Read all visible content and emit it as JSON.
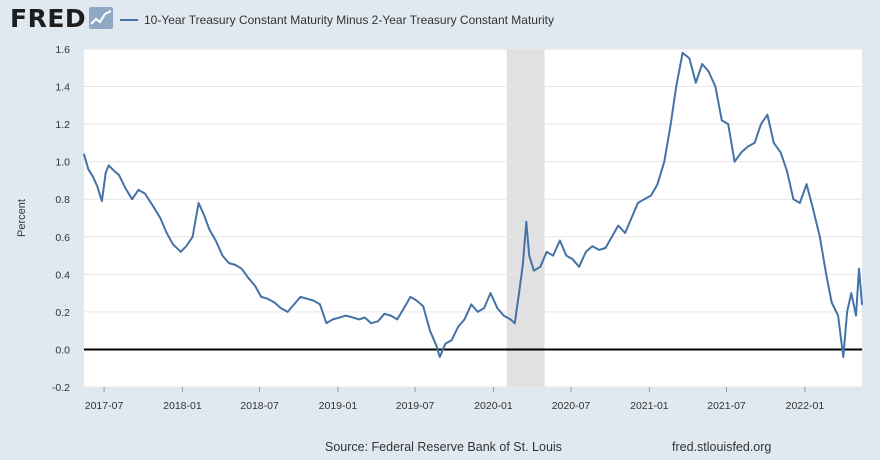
{
  "branding": {
    "logo_text": "FRED",
    "logo_icon": "fred-trend-line-icon"
  },
  "footer": {
    "source": "Source: Federal Reserve Bank of St. Louis",
    "url": "fred.stlouisfed.org"
  },
  "colors": {
    "background": "#e1e9f0",
    "plot_background": "#ffffff",
    "series": "#4572a7",
    "recession": "#e1e1e1",
    "zero_line": "#000000",
    "grid": "#e6e6e6"
  },
  "chart_data": {
    "type": "line",
    "title": "",
    "xlabel": "",
    "ylabel": "Percent",
    "ylim": [
      -0.2,
      1.6
    ],
    "xlim": [
      "2017-05-15",
      "2022-05-15"
    ],
    "grid": "horizontal",
    "legend_position": "top",
    "y_ticks": [
      "1.6",
      "1.4",
      "1.2",
      "1.0",
      "0.8",
      "0.6",
      "0.4",
      "0.2",
      "0.0",
      "-0.2"
    ],
    "x_ticks": [
      "2017-07",
      "2018-01",
      "2018-07",
      "2019-01",
      "2019-07",
      "2020-01",
      "2020-07",
      "2021-01",
      "2021-07",
      "2022-01"
    ],
    "recession_shading": [
      {
        "start": "2020-02-01",
        "end": "2020-04-30"
      }
    ],
    "reference_line": {
      "y": 0.0
    },
    "series": [
      {
        "name": "10-Year Treasury Constant Maturity Minus 2-Year Treasury Constant Maturity",
        "points": [
          [
            "2017-05-15",
            1.04
          ],
          [
            "2017-05-25",
            0.96
          ],
          [
            "2017-06-05",
            0.92
          ],
          [
            "2017-06-15",
            0.87
          ],
          [
            "2017-06-26",
            0.79
          ],
          [
            "2017-07-05",
            0.94
          ],
          [
            "2017-07-12",
            0.98
          ],
          [
            "2017-07-25",
            0.95
          ],
          [
            "2017-08-05",
            0.93
          ],
          [
            "2017-08-20",
            0.86
          ],
          [
            "2017-09-05",
            0.8
          ],
          [
            "2017-09-20",
            0.85
          ],
          [
            "2017-10-05",
            0.83
          ],
          [
            "2017-10-25",
            0.76
          ],
          [
            "2017-11-10",
            0.7
          ],
          [
            "2017-11-25",
            0.62
          ],
          [
            "2017-12-10",
            0.56
          ],
          [
            "2017-12-28",
            0.52
          ],
          [
            "2018-01-10",
            0.55
          ],
          [
            "2018-01-25",
            0.6
          ],
          [
            "2018-02-08",
            0.78
          ],
          [
            "2018-02-20",
            0.72
          ],
          [
            "2018-03-05",
            0.64
          ],
          [
            "2018-03-20",
            0.58
          ],
          [
            "2018-04-05",
            0.5
          ],
          [
            "2018-04-20",
            0.46
          ],
          [
            "2018-05-05",
            0.45
          ],
          [
            "2018-05-20",
            0.43
          ],
          [
            "2018-06-05",
            0.38
          ],
          [
            "2018-06-20",
            0.34
          ],
          [
            "2018-07-05",
            0.28
          ],
          [
            "2018-07-20",
            0.27
          ],
          [
            "2018-08-05",
            0.25
          ],
          [
            "2018-08-20",
            0.22
          ],
          [
            "2018-09-05",
            0.2
          ],
          [
            "2018-09-20",
            0.24
          ],
          [
            "2018-10-05",
            0.28
          ],
          [
            "2018-10-20",
            0.27
          ],
          [
            "2018-11-05",
            0.26
          ],
          [
            "2018-11-20",
            0.24
          ],
          [
            "2018-12-05",
            0.14
          ],
          [
            "2018-12-20",
            0.16
          ],
          [
            "2019-01-05",
            0.17
          ],
          [
            "2019-01-20",
            0.18
          ],
          [
            "2019-02-05",
            0.17
          ],
          [
            "2019-02-20",
            0.16
          ],
          [
            "2019-03-05",
            0.17
          ],
          [
            "2019-03-20",
            0.14
          ],
          [
            "2019-04-05",
            0.15
          ],
          [
            "2019-04-20",
            0.19
          ],
          [
            "2019-05-05",
            0.18
          ],
          [
            "2019-05-20",
            0.16
          ],
          [
            "2019-06-05",
            0.22
          ],
          [
            "2019-06-20",
            0.28
          ],
          [
            "2019-07-05",
            0.26
          ],
          [
            "2019-07-20",
            0.23
          ],
          [
            "2019-08-05",
            0.1
          ],
          [
            "2019-08-20",
            0.02
          ],
          [
            "2019-08-28",
            -0.04
          ],
          [
            "2019-09-10",
            0.03
          ],
          [
            "2019-09-25",
            0.05
          ],
          [
            "2019-10-10",
            0.12
          ],
          [
            "2019-10-25",
            0.16
          ],
          [
            "2019-11-10",
            0.24
          ],
          [
            "2019-11-25",
            0.2
          ],
          [
            "2019-12-10",
            0.22
          ],
          [
            "2019-12-25",
            0.3
          ],
          [
            "2020-01-10",
            0.22
          ],
          [
            "2020-01-25",
            0.18
          ],
          [
            "2020-02-10",
            0.16
          ],
          [
            "2020-02-20",
            0.14
          ],
          [
            "2020-03-01",
            0.3
          ],
          [
            "2020-03-10",
            0.45
          ],
          [
            "2020-03-18",
            0.68
          ],
          [
            "2020-03-25",
            0.5
          ],
          [
            "2020-04-05",
            0.42
          ],
          [
            "2020-04-20",
            0.44
          ],
          [
            "2020-05-05",
            0.52
          ],
          [
            "2020-05-20",
            0.5
          ],
          [
            "2020-06-05",
            0.58
          ],
          [
            "2020-06-20",
            0.5
          ],
          [
            "2020-07-05",
            0.48
          ],
          [
            "2020-07-20",
            0.44
          ],
          [
            "2020-08-05",
            0.52
          ],
          [
            "2020-08-20",
            0.55
          ],
          [
            "2020-09-05",
            0.53
          ],
          [
            "2020-09-20",
            0.54
          ],
          [
            "2020-10-05",
            0.6
          ],
          [
            "2020-10-20",
            0.66
          ],
          [
            "2020-11-05",
            0.62
          ],
          [
            "2020-11-20",
            0.7
          ],
          [
            "2020-12-05",
            0.78
          ],
          [
            "2020-12-20",
            0.8
          ],
          [
            "2021-01-05",
            0.82
          ],
          [
            "2021-01-20",
            0.88
          ],
          [
            "2021-02-05",
            1.0
          ],
          [
            "2021-02-20",
            1.2
          ],
          [
            "2021-03-05",
            1.4
          ],
          [
            "2021-03-20",
            1.58
          ],
          [
            "2021-04-05",
            1.55
          ],
          [
            "2021-04-20",
            1.42
          ],
          [
            "2021-05-05",
            1.52
          ],
          [
            "2021-05-20",
            1.48
          ],
          [
            "2021-06-05",
            1.4
          ],
          [
            "2021-06-20",
            1.22
          ],
          [
            "2021-07-05",
            1.2
          ],
          [
            "2021-07-20",
            1.0
          ],
          [
            "2021-08-05",
            1.05
          ],
          [
            "2021-08-20",
            1.08
          ],
          [
            "2021-09-05",
            1.1
          ],
          [
            "2021-09-20",
            1.2
          ],
          [
            "2021-10-05",
            1.25
          ],
          [
            "2021-10-20",
            1.1
          ],
          [
            "2021-11-05",
            1.05
          ],
          [
            "2021-11-20",
            0.95
          ],
          [
            "2021-12-05",
            0.8
          ],
          [
            "2021-12-20",
            0.78
          ],
          [
            "2022-01-05",
            0.88
          ],
          [
            "2022-01-20",
            0.75
          ],
          [
            "2022-02-05",
            0.6
          ],
          [
            "2022-02-20",
            0.4
          ],
          [
            "2022-03-05",
            0.25
          ],
          [
            "2022-03-20",
            0.18
          ],
          [
            "2022-04-01",
            -0.04
          ],
          [
            "2022-04-10",
            0.2
          ],
          [
            "2022-04-20",
            0.3
          ],
          [
            "2022-05-01",
            0.18
          ],
          [
            "2022-05-08",
            0.43
          ],
          [
            "2022-05-15",
            0.24
          ]
        ]
      }
    ]
  }
}
